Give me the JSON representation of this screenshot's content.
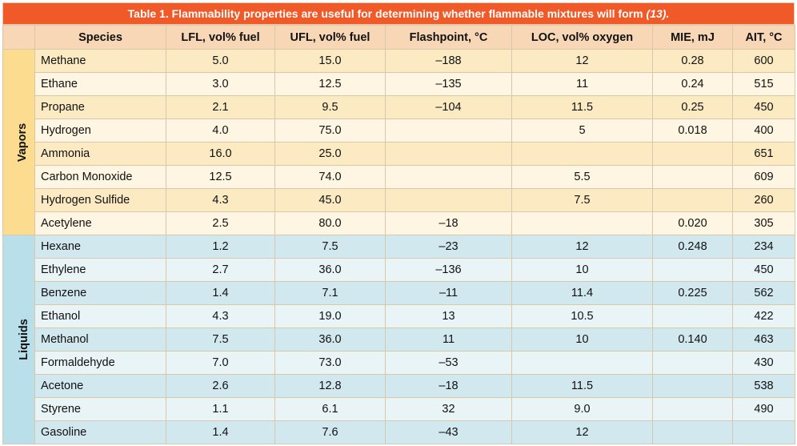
{
  "table": {
    "title": "Table 1. Flammability properties are useful for determining whether flammable mixtures will form",
    "title_ref": "(13).",
    "headers": [
      "Species",
      "LFL, vol% fuel",
      "UFL, vol% fuel",
      "Flashpoint, °C",
      "LOC, vol% oxygen",
      "MIE, mJ",
      "AIT, °C"
    ],
    "groups": {
      "vapors": "Vapors",
      "liquids": "Liquids"
    },
    "vapors": [
      [
        "Methane",
        "5.0",
        "15.0",
        "–188",
        "12",
        "0.28",
        "600"
      ],
      [
        "Ethane",
        "3.0",
        "12.5",
        "–135",
        "11",
        "0.24",
        "515"
      ],
      [
        "Propane",
        "2.1",
        "9.5",
        "–104",
        "11.5",
        "0.25",
        "450"
      ],
      [
        "Hydrogen",
        "4.0",
        "75.0",
        "",
        "5",
        "0.018",
        "400"
      ],
      [
        "Ammonia",
        "16.0",
        "25.0",
        "",
        "",
        "",
        "651"
      ],
      [
        "Carbon Monoxide",
        "12.5",
        "74.0",
        "",
        "5.5",
        "",
        "609"
      ],
      [
        "Hydrogen Sulfide",
        "4.3",
        "45.0",
        "",
        "7.5",
        "",
        "260"
      ],
      [
        "Acetylene",
        "2.5",
        "80.0",
        "–18",
        "",
        "0.020",
        "305"
      ]
    ],
    "liquids": [
      [
        "Hexane",
        "1.2",
        "7.5",
        "–23",
        "12",
        "0.248",
        "234"
      ],
      [
        "Ethylene",
        "2.7",
        "36.0",
        "–136",
        "10",
        "",
        "450"
      ],
      [
        "Benzene",
        "1.4",
        "7.1",
        "–11",
        "11.4",
        "0.225",
        "562"
      ],
      [
        "Ethanol",
        "4.3",
        "19.0",
        "13",
        "10.5",
        "",
        "422"
      ],
      [
        "Methanol",
        "7.5",
        "36.0",
        "11",
        "10",
        "0.140",
        "463"
      ],
      [
        "Formaldehyde",
        "7.0",
        "73.0",
        "–53",
        "",
        "",
        "430"
      ],
      [
        "Acetone",
        "2.6",
        "12.8",
        "–18",
        "11.5",
        "",
        "538"
      ],
      [
        "Styrene",
        "1.1",
        "6.1",
        "32",
        "9.0",
        "",
        "490"
      ],
      [
        "Gasoline",
        "1.4",
        "7.6",
        "–43",
        "12",
        "",
        ""
      ]
    ]
  },
  "colors": {
    "title_bar": "#f05a28",
    "header": "#f8d7b6",
    "vapor_band": "#fcdc8e",
    "liquid_band": "#b9dfeb"
  }
}
